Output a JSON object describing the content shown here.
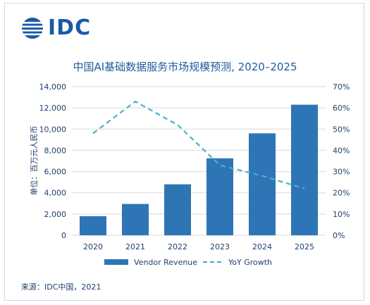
{
  "logo": {
    "text": "IDC"
  },
  "title": "中国AI基础数据服务市场规模预测, 2020–2025",
  "source": "来源：IDC中国，2021",
  "chart_data": {
    "type": "bar",
    "title": "中国AI基础数据服务市场规模预测, 2020–2025",
    "categories": [
      "2020",
      "2021",
      "2022",
      "2023",
      "2024",
      "2025"
    ],
    "ylabel": "单位：百万元人民币",
    "ylim": [
      0,
      14000
    ],
    "y_ticks": [
      "0",
      "2,000",
      "4,000",
      "6,000",
      "8,000",
      "10,000",
      "12,000",
      "14,000"
    ],
    "y2lim": [
      0,
      70
    ],
    "y2_ticks": [
      "0%",
      "10%",
      "20%",
      "30%",
      "40%",
      "50%",
      "60%",
      "70%"
    ],
    "series": [
      {
        "name": "Vendor Revenue",
        "type": "bar",
        "axis": "left",
        "color": "#2e75b6",
        "values": [
          1800,
          2950,
          4800,
          7250,
          9600,
          12300
        ]
      },
      {
        "name": "YoY Growth",
        "type": "line",
        "axis": "right",
        "style": "dashed",
        "color": "#4ab0c8",
        "values": [
          48,
          63,
          52,
          33,
          28,
          22
        ]
      }
    ],
    "grid": "horizontal",
    "legend": "bottom"
  }
}
